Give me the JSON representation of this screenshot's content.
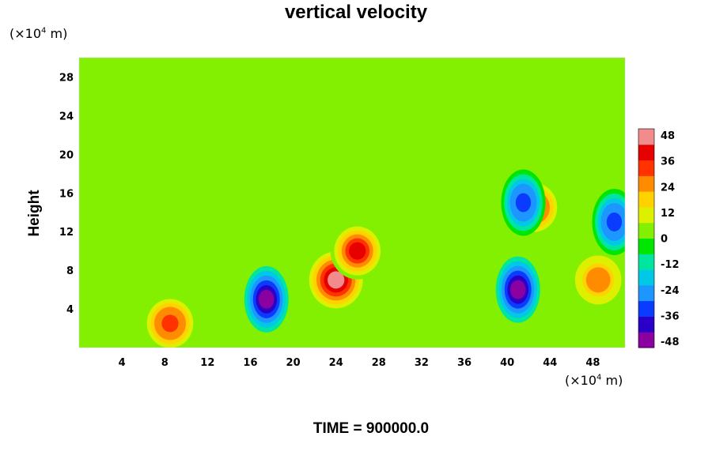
{
  "chart_data": {
    "type": "heatmap",
    "title": "vertical velocity",
    "ylabel": "Height",
    "xlabel": "",
    "x_unit": {
      "base": "(×10",
      "exp": "4",
      "suffix": " m)"
    },
    "y_unit": {
      "base": "(×10",
      "exp": "4",
      "suffix": " m)"
    },
    "xlim": [
      0,
      51
    ],
    "ylim": [
      0,
      30
    ],
    "x_ticks": [
      4,
      8,
      12,
      16,
      20,
      24,
      28,
      32,
      36,
      40,
      44,
      48
    ],
    "y_ticks": [
      4,
      8,
      12,
      16,
      20,
      24,
      28
    ],
    "colorbar": {
      "range": [
        -48,
        48
      ],
      "ticks": [
        48,
        36,
        24,
        12,
        0,
        -12,
        -24,
        -36,
        -48
      ],
      "colors": [
        "#8b00a0",
        "#2a00c8",
        "#0a3cff",
        "#1e96ff",
        "#00c8e6",
        "#00e6a0",
        "#00e600",
        "#82f000",
        "#dcf000",
        "#ffd200",
        "#ff8c00",
        "#ff3200",
        "#e60000",
        "#f08c8c"
      ]
    },
    "background_value": 0,
    "features": [
      {
        "sign": "positive",
        "x": 24,
        "y": 7,
        "peak": 48
      },
      {
        "sign": "positive",
        "x": 26,
        "y": 10,
        "peak": 40
      },
      {
        "sign": "negative",
        "x": 17.5,
        "y": 5,
        "peak": -48
      },
      {
        "sign": "negative",
        "x": 41,
        "y": 6,
        "peak": -48
      },
      {
        "sign": "positive",
        "x": 48.5,
        "y": 7,
        "peak": 30
      },
      {
        "sign": "positive",
        "x": 42.5,
        "y": 14.5,
        "peak": 36
      },
      {
        "sign": "negative",
        "x": 41.5,
        "y": 15,
        "peak": -36
      },
      {
        "sign": "positive",
        "x": 8.5,
        "y": 2.5,
        "peak": 36
      },
      {
        "sign": "negative",
        "x": 50,
        "y": 13,
        "peak": -36
      }
    ],
    "annotation": "TIME = 900000.0"
  }
}
